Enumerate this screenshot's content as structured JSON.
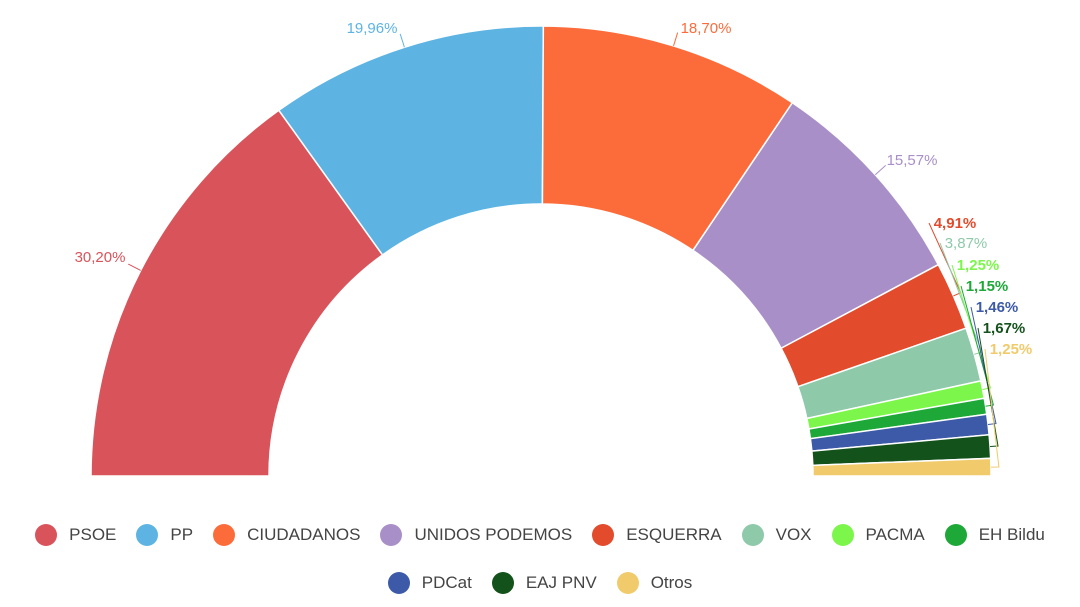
{
  "chart_data": {
    "type": "pie",
    "subtype": "half-donut",
    "series": [
      {
        "name": "PSOE",
        "value": 30.2,
        "label": "30,20%",
        "color": "#d9535a"
      },
      {
        "name": "PP",
        "value": 19.96,
        "label": "19,96%",
        "color": "#5db4e3"
      },
      {
        "name": "CIUDADANOS",
        "value": 18.7,
        "label": "18,70%",
        "color": "#fc6c3b"
      },
      {
        "name": "UNIDOS PODEMOS",
        "value": 15.57,
        "label": "15,57%",
        "color": "#a98fc7"
      },
      {
        "name": "ESQUERRA",
        "value": 4.91,
        "label": "4,91%",
        "color": "#e24b2c"
      },
      {
        "name": "VOX",
        "value": 3.87,
        "label": "3,87%",
        "color": "#8ec9a9"
      },
      {
        "name": "PACMA",
        "value": 1.25,
        "label": "1,25%",
        "color": "#7cf64b"
      },
      {
        "name": "EH Bildu",
        "value": 1.15,
        "label": "1,15%",
        "color": "#1da838"
      },
      {
        "name": "PDCat",
        "value": 1.46,
        "label": "1,46%",
        "color": "#3d5aa8"
      },
      {
        "name": "EAJ PNV",
        "value": 1.67,
        "label": "1,67%",
        "color": "#14521b"
      },
      {
        "name": "Otros",
        "value": 1.25,
        "label": "1,25%",
        "color": "#f1cb6b"
      }
    ],
    "legend_position": "bottom"
  }
}
